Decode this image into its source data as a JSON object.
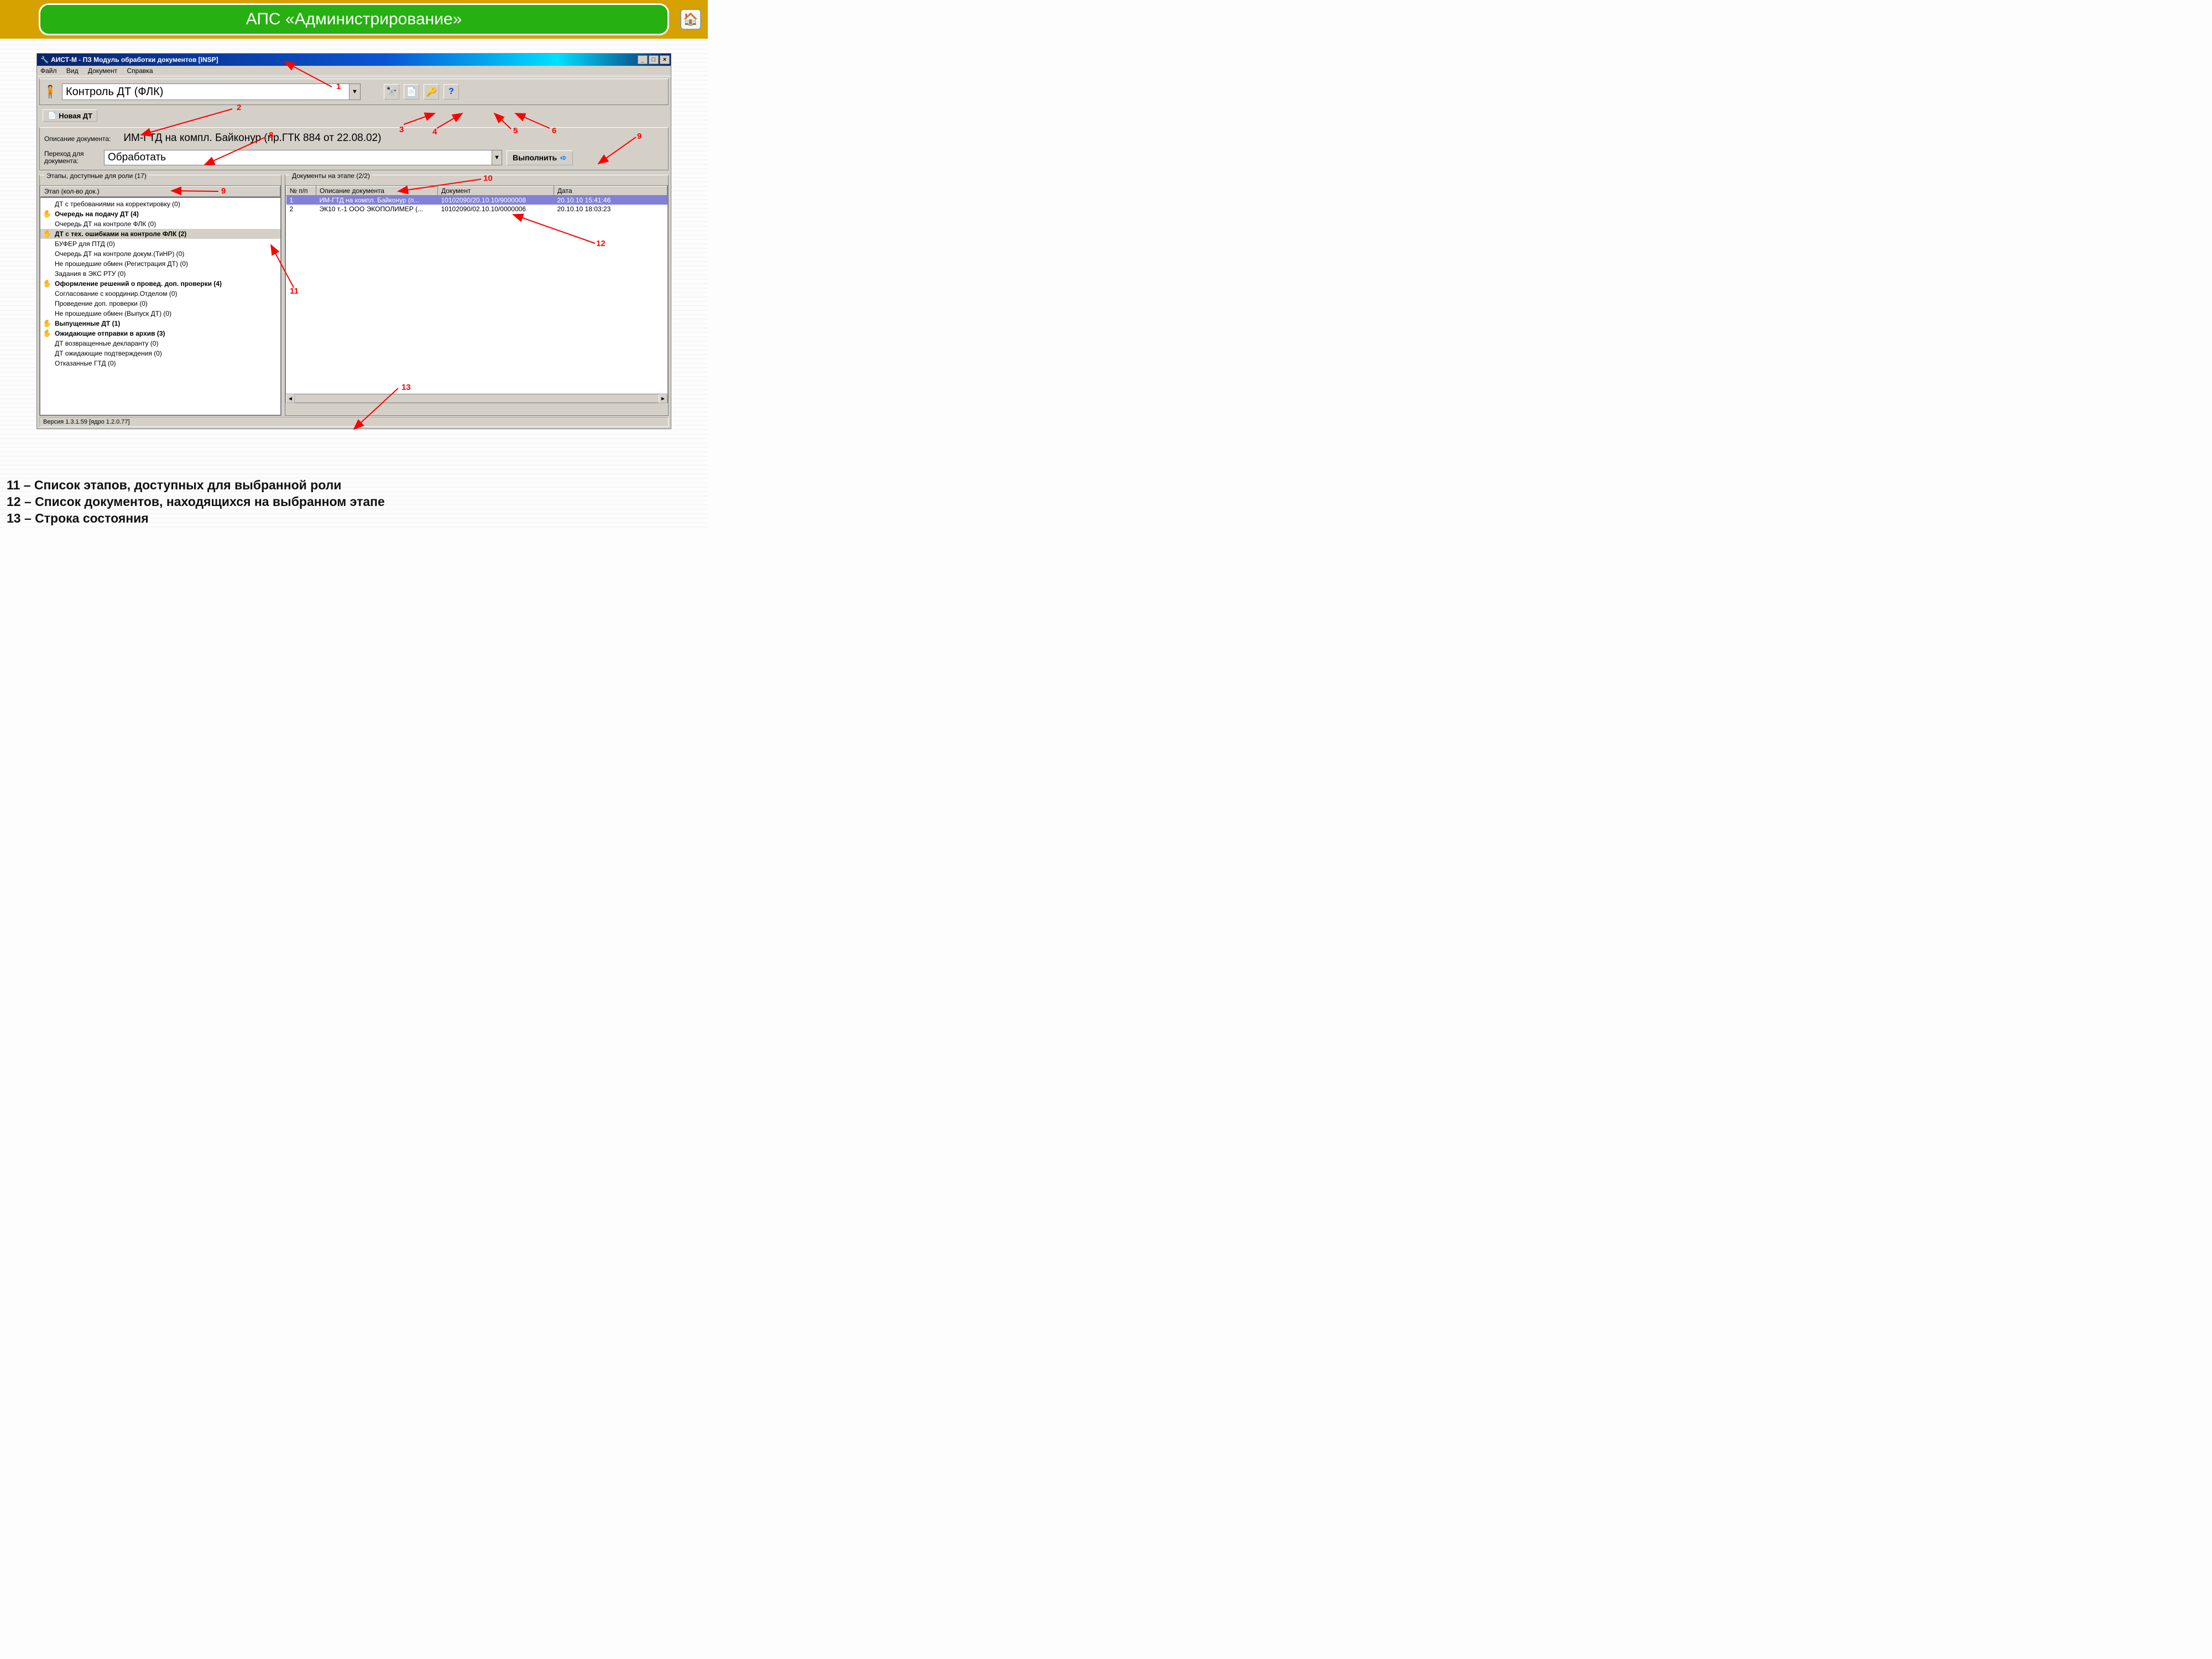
{
  "slide": {
    "title": "АПС «Администрирование»",
    "gold_color": "#d5a200",
    "green_color": "#27b011"
  },
  "window": {
    "title": "АИСТ-М - ПЗ Модуль обработки документов [INSP]",
    "menu": {
      "file": "Файл",
      "view": "Вид",
      "document": "Документ",
      "help": "Справка"
    }
  },
  "toolbar": {
    "main_combo": "Контроль ДТ (ФЛК)",
    "new_dt_label": "Новая ДТ"
  },
  "doc": {
    "desc_label": "Описание документа:",
    "desc_value": "ИМ-ГТД на компл. Байконур (пр.ГТК 884 от 22.08.02)",
    "transition_label_1": "Переход для",
    "transition_label_2": "документа:",
    "transition_value": "Обработать",
    "exec_label": "Выполнить"
  },
  "left_pane": {
    "group_label": "Этапы, доступные для роли (17)",
    "header": "Этап (кол-во док.)",
    "items": [
      {
        "label": "ДТ с требованиями на корректировку (0)",
        "bold": false,
        "hand": false
      },
      {
        "label": "Очередь на подачу ДТ (4)",
        "bold": true,
        "hand": true
      },
      {
        "label": "Очередь ДТ на контроле ФЛК (0)",
        "bold": false,
        "hand": false
      },
      {
        "label": "ДТ с тех. ошибками на контроле ФЛК (2)",
        "bold": true,
        "hand": true,
        "selected": true
      },
      {
        "label": "БУФЕР для ПТД (0)",
        "bold": false,
        "hand": false
      },
      {
        "label": "Очередь ДТ на контроле докум.(ТиНР) (0)",
        "bold": false,
        "hand": false
      },
      {
        "label": "Не прошедшие обмен (Регистрация ДТ) (0)",
        "bold": false,
        "hand": false
      },
      {
        "label": "Задания в ЭКС РТУ (0)",
        "bold": false,
        "hand": false
      },
      {
        "label": "Оформление решений о провед. доп. проверки (4)",
        "bold": true,
        "hand": true
      },
      {
        "label": "Согласование с координир.Отделом (0)",
        "bold": false,
        "hand": false
      },
      {
        "label": "Проведение доп. проверки (0)",
        "bold": false,
        "hand": false
      },
      {
        "label": "Не прошедшие обмен (Выпуск ДТ) (0)",
        "bold": false,
        "hand": false
      },
      {
        "label": "Выпущенные ДТ (1)",
        "bold": true,
        "hand": true
      },
      {
        "label": "Ожидающие отправки в архив (3)",
        "bold": true,
        "hand": true
      },
      {
        "label": "ДТ возвращенные декларанту (0)",
        "bold": false,
        "hand": false
      },
      {
        "label": "ДТ ожидающие подтверждения (0)",
        "bold": false,
        "hand": false
      },
      {
        "label": "Отказанные ГТД (0)",
        "bold": false,
        "hand": false
      }
    ]
  },
  "right_pane": {
    "group_label": "Документы на этапе (2/2)",
    "columns": {
      "n": "№ п/п",
      "desc": "Описание документа",
      "doc": "Документ",
      "date": "Дата"
    },
    "rows": [
      {
        "n": "1",
        "desc": "ИМ-ГТД на компл. Байконур (п...",
        "doc": "10102090/20.10.10/9000008",
        "date": "20.10.10 15:41:46",
        "selected": true
      },
      {
        "n": "2",
        "desc": "ЭК10 т.-1 ООО ЭКОПОЛИМЕР (...",
        "doc": "10102090/02.10.10/0000006",
        "date": "20.10.10 18:03:23",
        "selected": false
      }
    ]
  },
  "statusbar": "Версия 1.3.1.59 [ядро 1.2.0.77]",
  "annotations": {
    "1": "1",
    "2": "2",
    "3": "3",
    "4": "4",
    "5": "5",
    "6": "6",
    "8": "8",
    "9a": "9",
    "9b": "9",
    "10": "10",
    "11": "11",
    "12": "12",
    "13": "13"
  },
  "footer": {
    "line1": "11 – Список этапов, доступных для выбранной роли",
    "line2": "12 – Список документов, находящихся на выбранном этапе",
    "line3": "13 – Строка состояния"
  }
}
